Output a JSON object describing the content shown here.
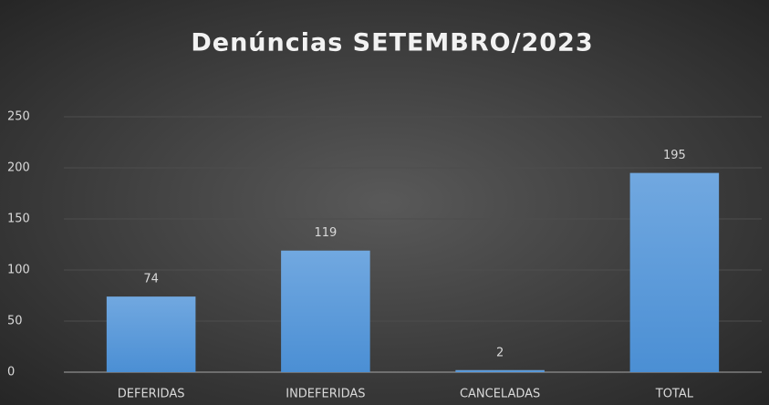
{
  "chart_data": {
    "type": "bar",
    "title": "Denúncias SETEMBRO/2023",
    "categories": [
      "DEFERIDAS",
      "INDEFERIDAS",
      "CANCELADAS",
      "TOTAL"
    ],
    "values": [
      74,
      119,
      2,
      195
    ],
    "color": "#5b9bd5",
    "ylim": [
      0,
      250
    ],
    "yticks": [
      0,
      50,
      100,
      150,
      200,
      250
    ],
    "grid": true
  }
}
